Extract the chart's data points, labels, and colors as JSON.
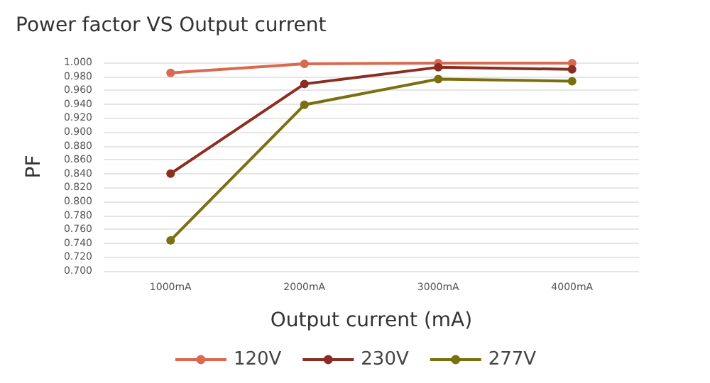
{
  "chart_data": {
    "type": "line",
    "title": "Power factor VS Output current",
    "xlabel": "Output current (mA)",
    "ylabel": "PF",
    "categories": [
      "1000mA",
      "2000mA",
      "3000mA",
      "4000mA"
    ],
    "series": [
      {
        "name": "120V",
        "color": "#d9694f",
        "values": [
          0.985,
          0.998,
          0.999,
          0.999
        ]
      },
      {
        "name": "230V",
        "color": "#8b2e22",
        "values": [
          0.84,
          0.969,
          0.993,
          0.99
        ]
      },
      {
        "name": "277V",
        "color": "#7a7010",
        "values": [
          0.744,
          0.939,
          0.976,
          0.973
        ]
      }
    ],
    "ylim": [
      0.7,
      1.0
    ],
    "yticks": [
      {
        "value": 0.7,
        "label": "0.700"
      },
      {
        "value": 0.72,
        "label": "0.720"
      },
      {
        "value": 0.74,
        "label": "0.740"
      },
      {
        "value": 0.76,
        "label": "0.760"
      },
      {
        "value": 0.78,
        "label": "0.780"
      },
      {
        "value": 0.8,
        "label": "0.800"
      },
      {
        "value": 0.82,
        "label": "0.820"
      },
      {
        "value": 0.84,
        "label": "0.840"
      },
      {
        "value": 0.86,
        "label": "0.860"
      },
      {
        "value": 0.88,
        "label": "0.880"
      },
      {
        "value": 0.9,
        "label": "0.900"
      },
      {
        "value": 0.92,
        "label": "0.920"
      },
      {
        "value": 0.94,
        "label": "0.940"
      },
      {
        "value": 0.96,
        "label": "0.960"
      },
      {
        "value": 0.98,
        "label": "0.980"
      },
      {
        "value": 1.0,
        "label": "1.000"
      }
    ],
    "grid": "y",
    "legend": "bottom",
    "marker": "circle",
    "line_style": "solid"
  }
}
